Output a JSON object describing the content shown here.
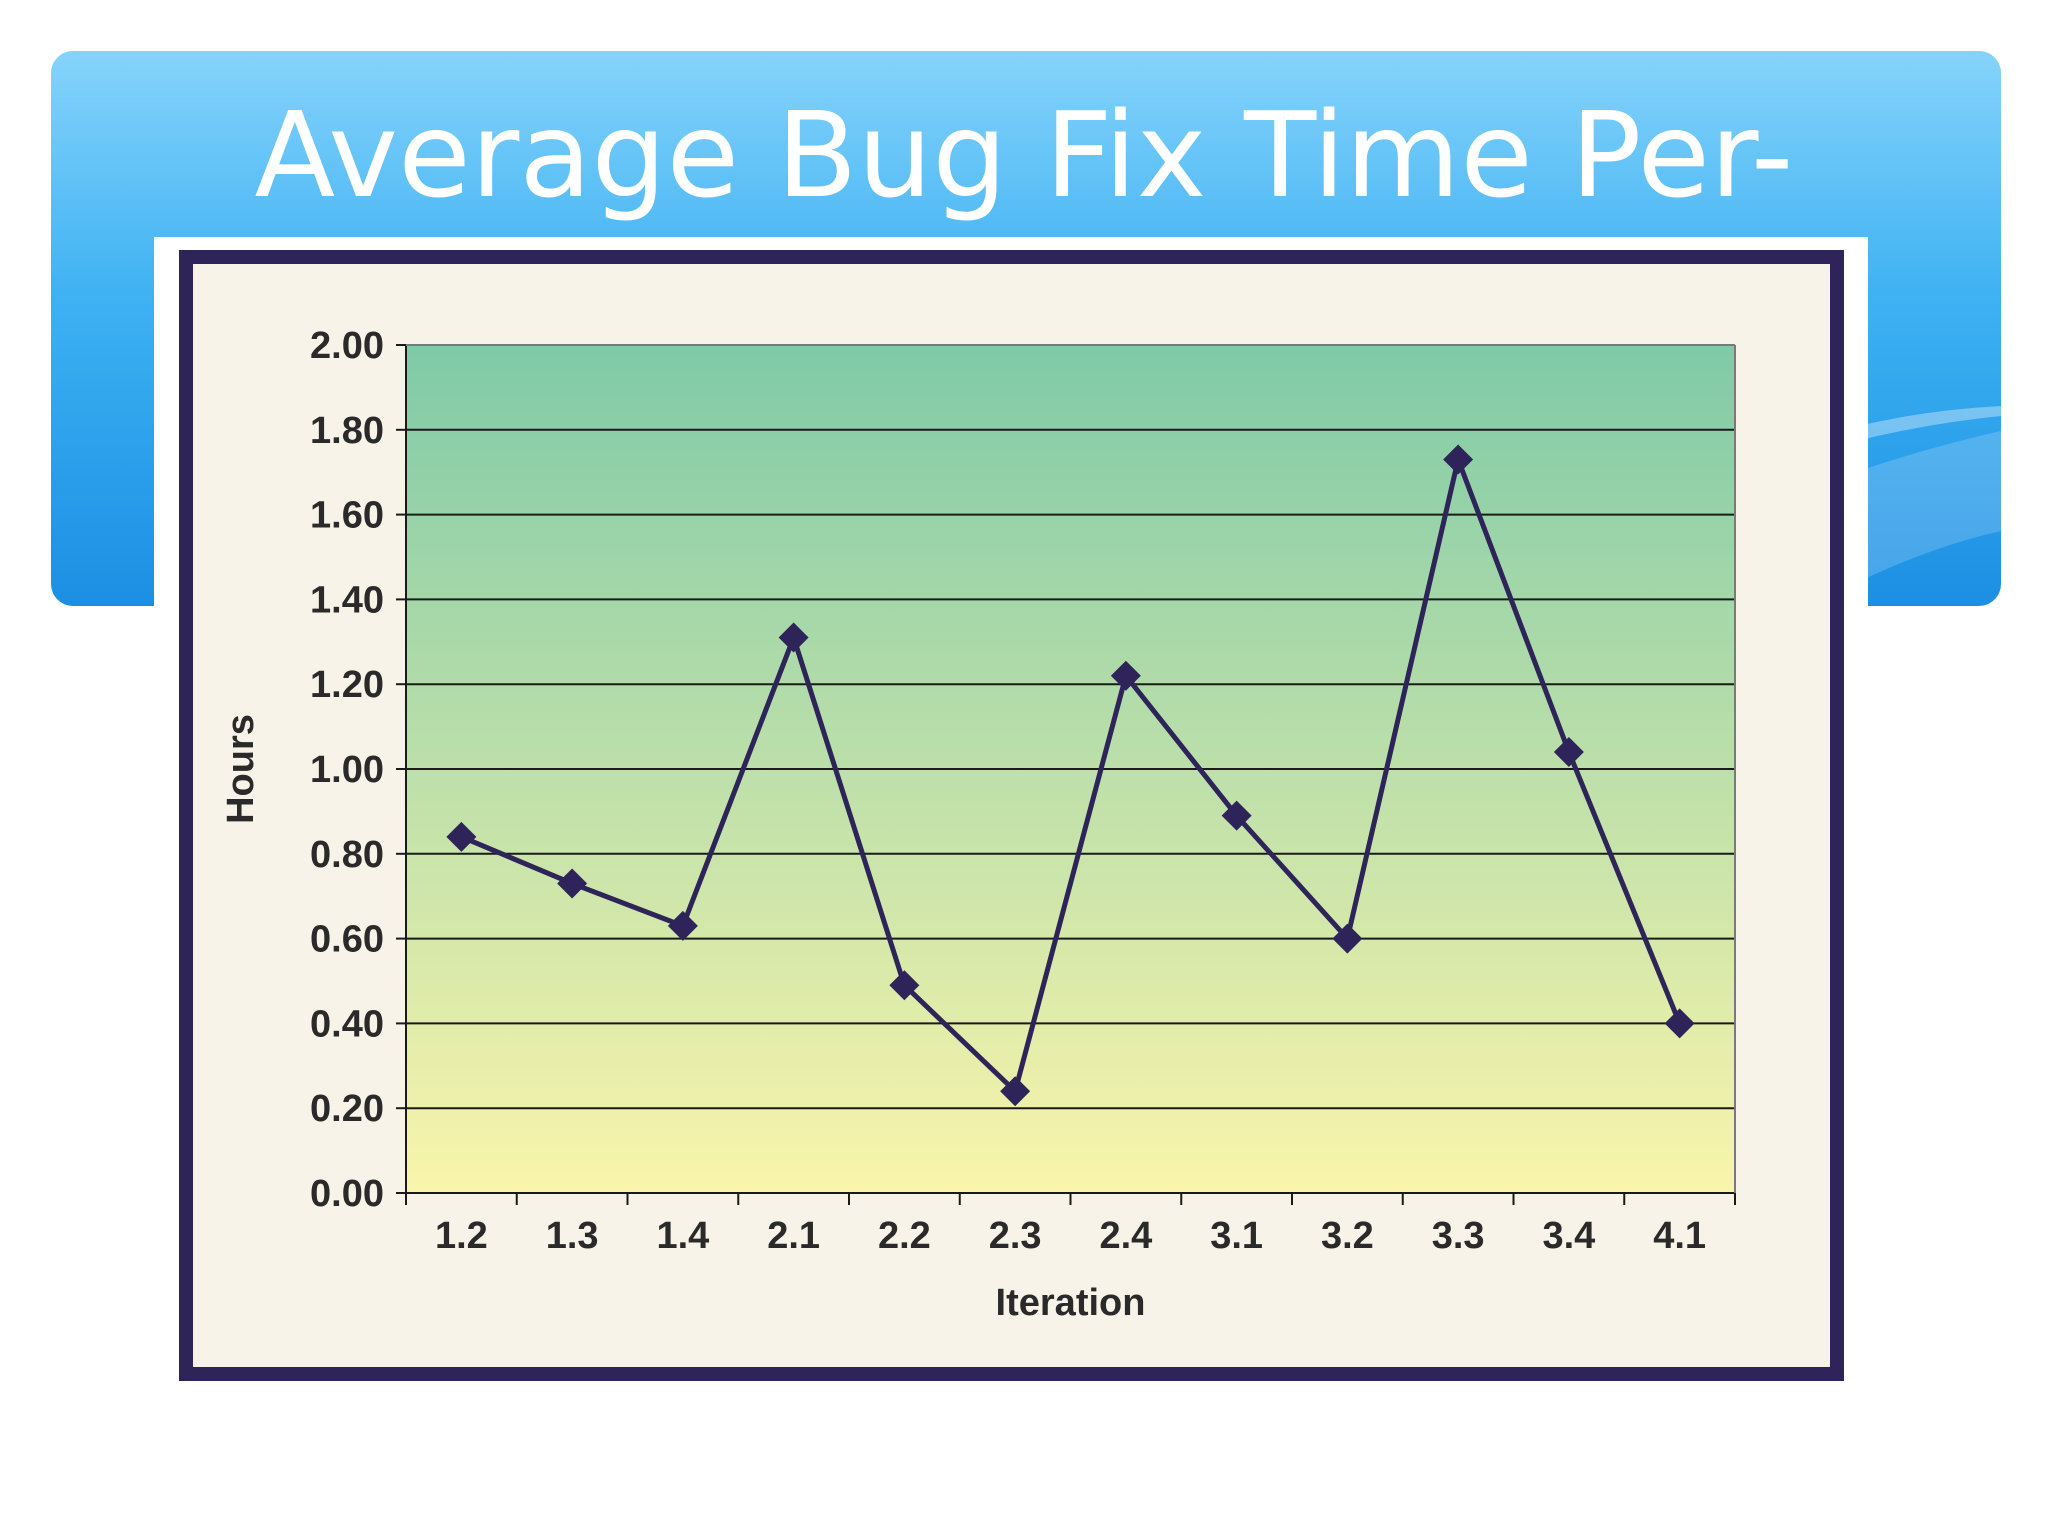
{
  "slide": {
    "title": "Average Bug Fix Time Per-"
  },
  "colors": {
    "banner_top": "#86d3fb",
    "banner_bottom": "#1c8fe4",
    "frame": "#2e2459",
    "plot_top": "#7fcaa8",
    "plot_bottom": "#faf5ab",
    "line": "#2e2459"
  },
  "chart_data": {
    "type": "line",
    "title": "",
    "xlabel": "Iteration",
    "ylabel": "Hours",
    "categories": [
      "1.2",
      "1.3",
      "1.4",
      "2.1",
      "2.2",
      "2.3",
      "2.4",
      "3.1",
      "3.2",
      "3.3",
      "3.4",
      "4.1"
    ],
    "series": [
      {
        "values": [
          0.84,
          0.73,
          0.63,
          1.31,
          0.49,
          0.24,
          1.22,
          0.89,
          0.6,
          1.73,
          1.04,
          0.4
        ]
      }
    ],
    "ylim": [
      0,
      2
    ],
    "yticks": [
      "0.00",
      "0.20",
      "0.40",
      "0.60",
      "0.80",
      "1.00",
      "1.20",
      "1.40",
      "1.60",
      "1.80",
      "2.00"
    ],
    "grid": true,
    "marker": "diamond"
  }
}
